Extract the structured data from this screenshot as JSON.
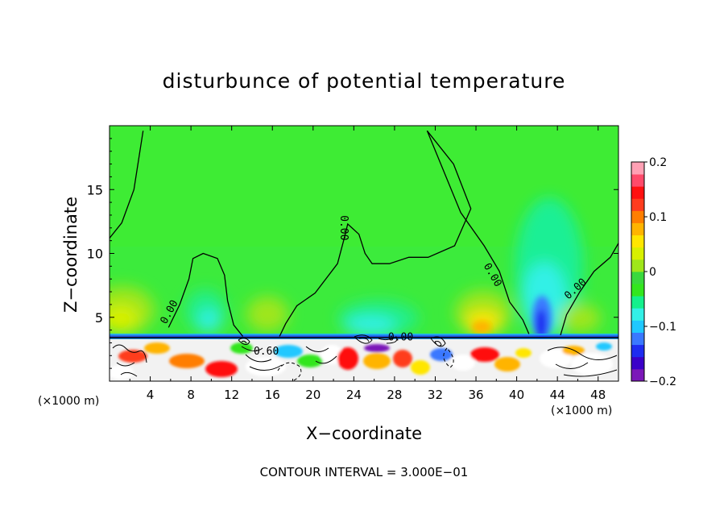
{
  "chart_data": {
    "type": "heatmap",
    "title": "disturbunce of potential temperature",
    "xlabel": "X−coordinate",
    "ylabel": "Z−coordinate",
    "x_unit_left": "(×1000 m)",
    "x_unit_right": "(×1000 m)",
    "xlim": [
      0,
      50
    ],
    "ylim": [
      0,
      20
    ],
    "x_ticks": [
      4,
      8,
      12,
      16,
      20,
      24,
      28,
      32,
      36,
      40,
      44,
      48
    ],
    "y_ticks": [
      5,
      10,
      15
    ],
    "colorbar": {
      "range": [
        -0.2,
        0.2
      ],
      "tick_values": [
        0.2,
        0.1,
        0,
        -0.1,
        -0.2
      ],
      "tick_labels": [
        "0.2",
        "0.1",
        "0",
        "−0.1",
        "−0.2"
      ],
      "colors": [
        "#7b17b8",
        "#3b00c8",
        "#1e2cf0",
        "#3a78ff",
        "#20c8ff",
        "#33f0e6",
        "#14f08c",
        "#33e61e",
        "#39d93d",
        "#9fe61a",
        "#d8f000",
        "#ffe600",
        "#ffb400",
        "#ff7e00",
        "#ff3c1e",
        "#ff1010",
        "#ff4a6a",
        "#ffa0b4"
      ]
    },
    "contour_labels": [
      {
        "text": "0.00",
        "x": 5.9,
        "z": 5.4,
        "angle": -62
      },
      {
        "text": "0.00",
        "x": 23,
        "z": 12,
        "angle": 90
      },
      {
        "text": "0.00",
        "x": 37.6,
        "z": 8.3,
        "angle": 60
      },
      {
        "text": "0.00",
        "x": 45.8,
        "z": 7.2,
        "angle": -42
      },
      {
        "text": "0.00",
        "x": 28.6,
        "z": 3.4,
        "angle": 0
      },
      {
        "text": "0.60",
        "x": 15.4,
        "z": 2.3,
        "angle": 0
      }
    ],
    "contour_interval_text": "CONTOUR INTERVAL = 3.000E−01",
    "zero_contours": [
      [
        [
          0,
          11.2
        ],
        [
          1.2,
          12.4
        ],
        [
          2.4,
          15
        ],
        [
          3.3,
          19.6
        ]
      ],
      [
        [
          5.8,
          4.2
        ],
        [
          6.9,
          6
        ],
        [
          7.8,
          8
        ],
        [
          8.2,
          9.6
        ],
        [
          9.2,
          10
        ],
        [
          10.6,
          9.6
        ],
        [
          11.3,
          8.3
        ],
        [
          11.6,
          6.3
        ],
        [
          12.2,
          4.4
        ],
        [
          13.1,
          3.5
        ]
      ],
      [
        [
          16.7,
          3.5
        ],
        [
          17.3,
          4.5
        ],
        [
          18.4,
          5.9
        ],
        [
          20.2,
          6.9
        ],
        [
          22.4,
          9.2
        ],
        [
          23,
          11
        ],
        [
          23.4,
          12.3
        ],
        [
          24.5,
          11.5
        ],
        [
          25.1,
          10
        ],
        [
          25.8,
          9.2
        ],
        [
          27.5,
          9.2
        ],
        [
          29.4,
          9.7
        ],
        [
          31.3,
          9.7
        ],
        [
          33.9,
          10.6
        ],
        [
          35.5,
          13.5
        ],
        [
          33.8,
          17
        ],
        [
          31.2,
          19.6
        ]
      ],
      [
        [
          41.2,
          3.7
        ],
        [
          40.6,
          4.8
        ],
        [
          39.3,
          6.2
        ],
        [
          38.3,
          8.6
        ],
        [
          36.8,
          10.6
        ],
        [
          34.5,
          13.2
        ],
        [
          31.2,
          19.6
        ]
      ],
      [
        [
          44.3,
          3.6
        ],
        [
          44.9,
          5.2
        ],
        [
          46.2,
          7
        ],
        [
          47.6,
          8.6
        ],
        [
          49.2,
          9.7
        ],
        [
          50,
          10.8
        ]
      ]
    ]
  }
}
